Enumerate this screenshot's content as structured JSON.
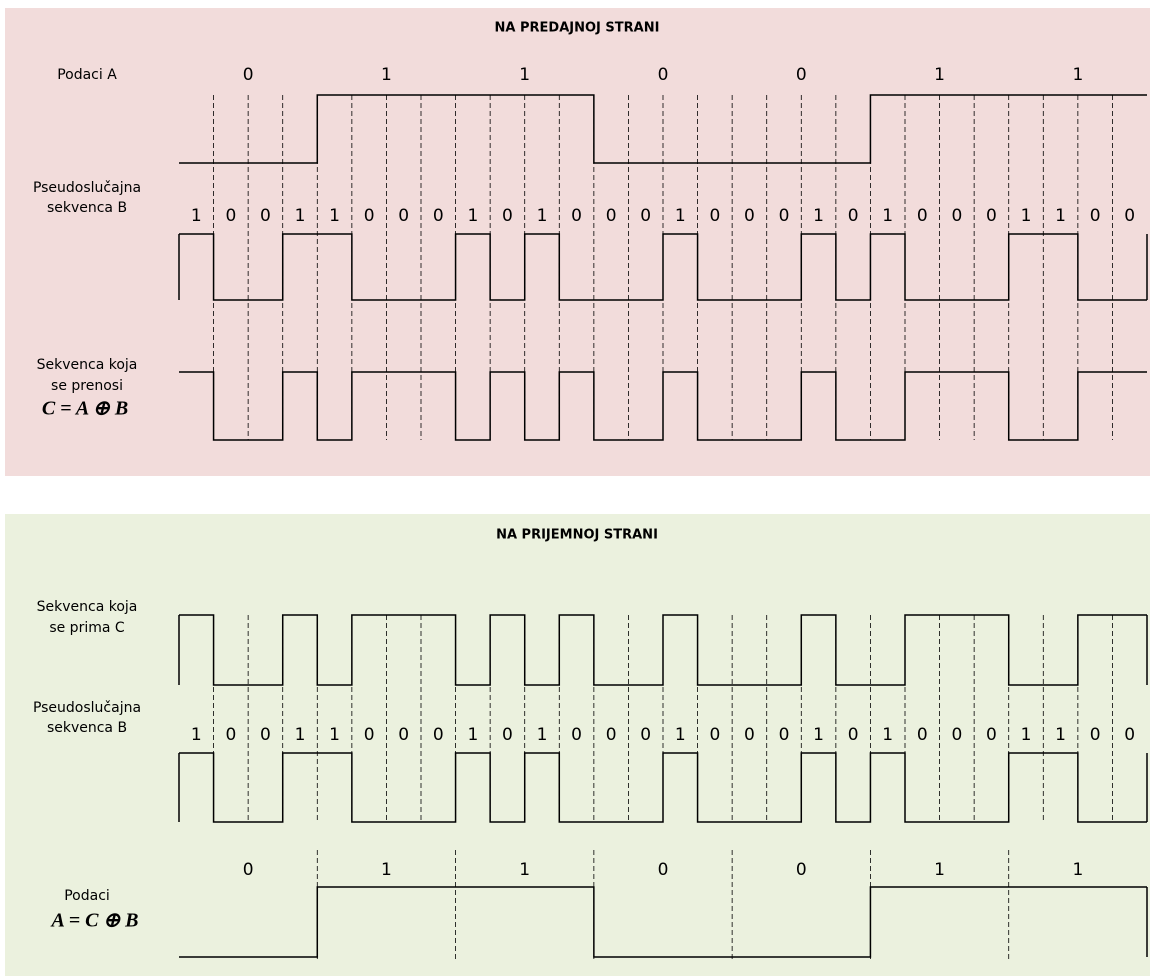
{
  "top": {
    "title": "NA PREDAJNOJ STRANI",
    "data_label": "Podaci A",
    "pn_label": [
      "Pseudoslučajna",
      "sekvenca B"
    ],
    "tx_label": [
      "Sekvenca koja",
      "se prenosi"
    ],
    "tx_formula": "C = A ⊕ B",
    "data_bits": [
      "0",
      "1",
      "1",
      "0",
      "0",
      "1",
      "1"
    ],
    "pn_bits": [
      "1",
      "0",
      "0",
      "1",
      "1",
      "0",
      "0",
      "0",
      "1",
      "0",
      "1",
      "0",
      "0",
      "0",
      "1",
      "0",
      "0",
      "0",
      "1",
      "0",
      "1",
      "0",
      "0",
      "0",
      "1",
      "1",
      "0",
      "0"
    ]
  },
  "bottom": {
    "title": "NA PRIJEMNOJ STRANI",
    "rx_label": [
      "Sekvenca koja",
      "se prima C"
    ],
    "pn_label": [
      "Pseudoslučajna",
      "sekvenca B"
    ],
    "data_label": "Podaci",
    "data_formula": "A = C ⊕ B",
    "pn_bits": [
      "1",
      "0",
      "0",
      "1",
      "1",
      "0",
      "0",
      "0",
      "1",
      "0",
      "1",
      "0",
      "0",
      "0",
      "1",
      "0",
      "0",
      "0",
      "1",
      "0",
      "1",
      "0",
      "0",
      "0",
      "1",
      "1",
      "0",
      "0"
    ],
    "data_bits": [
      "0",
      "1",
      "1",
      "0",
      "0",
      "1",
      "1"
    ]
  }
}
